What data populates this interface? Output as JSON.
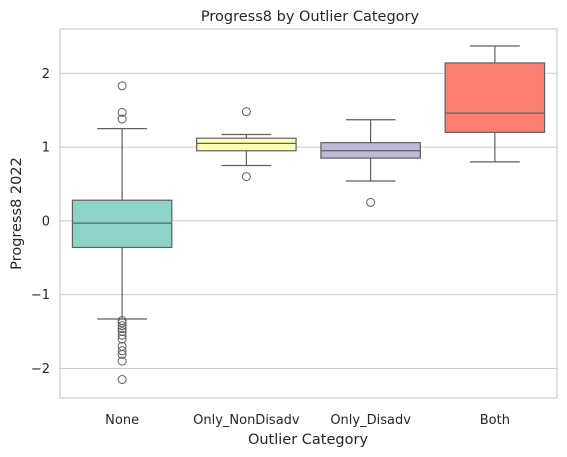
{
  "chart_data": {
    "type": "box",
    "title": "Progress8  by Outlier Category",
    "xlabel": "Outlier Category",
    "ylabel": "Progress8 2022",
    "ylim": [
      -2.4,
      2.6
    ],
    "yticks": [
      -2,
      -1,
      0,
      1,
      2
    ],
    "ytick_labels": [
      "−2",
      "−1",
      "0",
      "1",
      "2"
    ],
    "grid": true,
    "categories": [
      "None",
      "Only_NonDisadv",
      "Only_Disadv",
      "Both"
    ],
    "colors": [
      "#8dd3c7",
      "#ffffb3",
      "#bebada",
      "#fb8072"
    ],
    "boxes": [
      {
        "name": "None",
        "whislo": -1.33,
        "q1": -0.36,
        "med": -0.03,
        "q3": 0.28,
        "whishi": 1.25,
        "fliers": [
          1.83,
          1.47,
          1.38,
          -1.35,
          -1.38,
          -1.42,
          -1.46,
          -1.5,
          -1.55,
          -1.6,
          -1.7,
          -1.76,
          -1.81,
          -1.9,
          -2.15
        ]
      },
      {
        "name": "Only_NonDisadv",
        "whislo": 0.75,
        "q1": 0.95,
        "med": 1.05,
        "q3": 1.12,
        "whishi": 1.17,
        "fliers": [
          1.48,
          0.6
        ]
      },
      {
        "name": "Only_Disadv",
        "whislo": 0.54,
        "q1": 0.85,
        "med": 0.95,
        "q3": 1.06,
        "whishi": 1.37,
        "fliers": [
          0.25
        ]
      },
      {
        "name": "Both",
        "whislo": 0.8,
        "q1": 1.2,
        "med": 1.46,
        "q3": 2.14,
        "whishi": 2.37,
        "fliers": []
      }
    ]
  }
}
